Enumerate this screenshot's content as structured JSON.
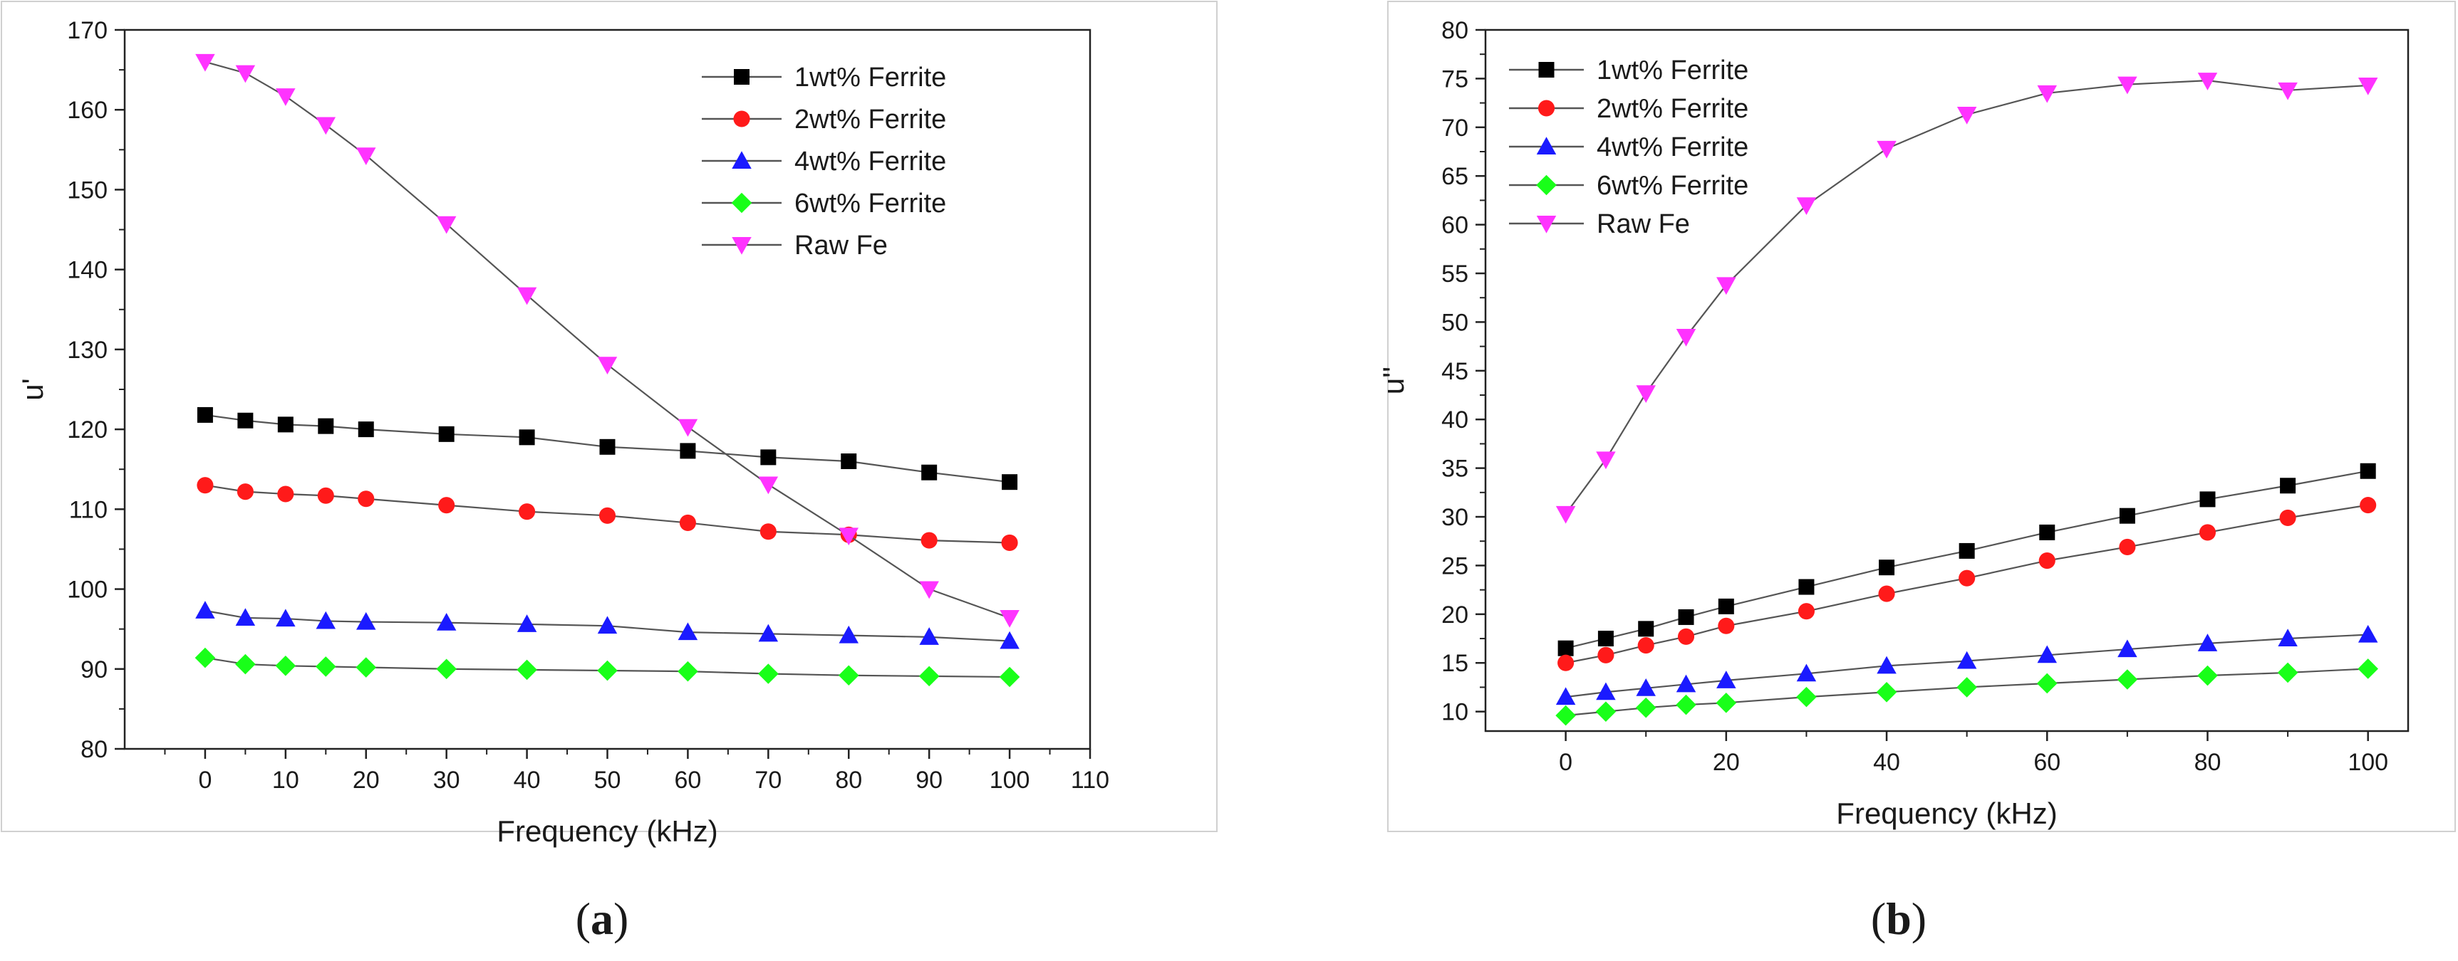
{
  "panels": [
    {
      "caption_open": "(",
      "caption_letter": "a",
      "caption_close": ")"
    },
    {
      "caption_open": "(",
      "caption_letter": "b",
      "caption_close": ")"
    }
  ],
  "chart_data": [
    {
      "type": "line",
      "title": "",
      "xlabel": "Frequency (kHz)",
      "ylabel": "u'",
      "xlim": [
        -10,
        110
      ],
      "ylim": [
        80,
        170
      ],
      "xticks": [
        0,
        10,
        20,
        30,
        40,
        50,
        60,
        70,
        80,
        90,
        100,
        110
      ],
      "yticks": [
        80,
        90,
        100,
        110,
        120,
        130,
        140,
        150,
        160,
        170
      ],
      "grid": false,
      "legend_position": "top-right",
      "x": [
        0,
        5,
        10,
        15,
        20,
        30,
        40,
        50,
        60,
        70,
        80,
        90,
        100
      ],
      "series": [
        {
          "name": "1wt% Ferrite",
          "marker": "square",
          "color": "#000000",
          "values": [
            121.8,
            121.1,
            120.6,
            120.4,
            120.0,
            119.4,
            119.0,
            117.8,
            117.3,
            116.5,
            116.0,
            114.6,
            113.4
          ]
        },
        {
          "name": "2wt% Ferrite",
          "marker": "circle",
          "color": "#ff1a1a",
          "values": [
            113.0,
            112.2,
            111.9,
            111.7,
            111.3,
            110.5,
            109.7,
            109.2,
            108.3,
            107.2,
            106.8,
            106.1,
            105.8
          ]
        },
        {
          "name": "4wt% Ferrite",
          "marker": "triangle-up",
          "color": "#1a1aff",
          "values": [
            97.3,
            96.4,
            96.3,
            96.0,
            95.9,
            95.8,
            95.6,
            95.4,
            94.6,
            94.4,
            94.2,
            94.0,
            93.5
          ]
        },
        {
          "name": "6wt% Ferrite",
          "marker": "diamond",
          "color": "#19ff19",
          "values": [
            91.4,
            90.6,
            90.4,
            90.3,
            90.2,
            90.0,
            89.9,
            89.8,
            89.7,
            89.4,
            89.2,
            89.1,
            89.0
          ]
        },
        {
          "name": "Raw Fe",
          "marker": "triangle-down",
          "color": "#ff33ff",
          "values": [
            166.0,
            164.6,
            161.7,
            158.1,
            154.3,
            145.7,
            136.8,
            128.1,
            120.3,
            113.1,
            106.7,
            100.0,
            96.4
          ]
        }
      ]
    },
    {
      "type": "line",
      "title": "",
      "xlabel": "Frequency (kHz)",
      "ylabel": "u''",
      "xlim": [
        -10,
        105
      ],
      "ylim": [
        8,
        80
      ],
      "xticks": [
        0,
        20,
        40,
        60,
        80,
        100
      ],
      "yticks": [
        10,
        15,
        20,
        25,
        30,
        35,
        40,
        45,
        50,
        55,
        60,
        65,
        70,
        75,
        80
      ],
      "grid": false,
      "legend_position": "top-left",
      "x": [
        0,
        5,
        10,
        15,
        20,
        30,
        40,
        50,
        60,
        70,
        80,
        90,
        100
      ],
      "series": [
        {
          "name": "1wt% Ferrite",
          "marker": "square",
          "color": "#000000",
          "values": [
            16.5,
            17.5,
            18.5,
            19.7,
            20.8,
            22.8,
            24.8,
            26.5,
            28.4,
            30.1,
            31.8,
            33.2,
            34.7
          ]
        },
        {
          "name": "2wt% Ferrite",
          "marker": "circle",
          "color": "#ff1a1a",
          "values": [
            15.0,
            15.8,
            16.8,
            17.7,
            18.8,
            20.3,
            22.1,
            23.7,
            25.5,
            26.9,
            28.4,
            29.9,
            31.2
          ]
        },
        {
          "name": "4wt% Ferrite",
          "marker": "triangle-up",
          "color": "#1a1aff",
          "values": [
            11.5,
            12.0,
            12.4,
            12.8,
            13.2,
            13.9,
            14.7,
            15.2,
            15.8,
            16.4,
            17.0,
            17.5,
            17.9
          ]
        },
        {
          "name": "6wt% Ferrite",
          "marker": "diamond",
          "color": "#19ff19",
          "values": [
            9.6,
            10.0,
            10.4,
            10.7,
            10.9,
            11.5,
            12.0,
            12.5,
            12.9,
            13.3,
            13.7,
            14.0,
            14.4
          ]
        },
        {
          "name": "Raw Fe",
          "marker": "triangle-down",
          "color": "#ff33ff",
          "values": [
            30.3,
            35.9,
            42.7,
            48.5,
            53.8,
            62.0,
            67.8,
            71.3,
            73.5,
            74.4,
            74.8,
            73.8,
            74.3
          ]
        }
      ]
    }
  ]
}
